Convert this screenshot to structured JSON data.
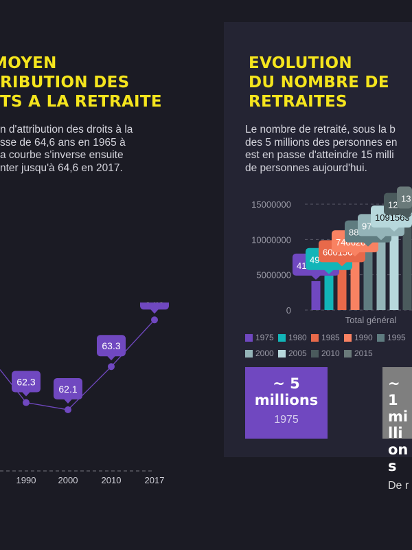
{
  "left": {
    "title_lines": [
      "MOYEN",
      "RIBUTION DES",
      "TS A LA RETRAITE"
    ],
    "paragraph_lines": [
      "n d'attribution des droits à la",
      "sse de 64,6 ans en 1965 à",
      "a courbe s'inverse ensuite",
      "nter jusqu'à 64,6 en 2017."
    ]
  },
  "right": {
    "title_lines": [
      "EVOLUTION",
      "DU NOMBRE DE",
      "RETRAITES"
    ],
    "paragraph_lines": [
      "Le nombre de retraité, sous la b",
      "des 5 millions des personnes en",
      "est en passe d'atteindre 15 milli",
      "de personnes aujourd'hui."
    ],
    "cards": [
      {
        "big1": "~ 5",
        "big2": "millions",
        "sub": "1975",
        "color": "#7048c0"
      },
      {
        "big1": "~ 1",
        "big2": "millions",
        "sub": "De r",
        "color": "#7f7f7f"
      }
    ]
  },
  "chart_data": [
    {
      "type": "line",
      "categories": [
        "1990",
        "2000",
        "2010",
        "2017"
      ],
      "values": [
        62.3,
        62.1,
        63.3,
        64.6
      ],
      "color": "#7048c0",
      "grid": false
    },
    {
      "type": "bar",
      "xlabel": "Total général",
      "yticks": [
        "0",
        "5000000",
        "10000000",
        "15000000"
      ],
      "ylim": [
        0,
        15000000
      ],
      "grid": true,
      "legend_position": "bottom",
      "series": [
        {
          "name": "1975",
          "value": 4100000,
          "label": "41",
          "color": "#7048c0"
        },
        {
          "name": "1980",
          "value": 4900000,
          "label": "49",
          "color": "#12b5b8"
        },
        {
          "name": "1985",
          "value": 6001569,
          "label": "6001569",
          "color": "#e8694a"
        },
        {
          "name": "1990",
          "value": 7406200,
          "label": "7406200",
          "color": "#f98262"
        },
        {
          "name": "1995",
          "value": 8800000,
          "label": "88",
          "color": "#5f7c80"
        },
        {
          "name": "2000",
          "value": 9700000,
          "label": "97",
          "color": "#94b4b8"
        },
        {
          "name": "2005",
          "value": 10915630,
          "label": "1091563",
          "color": "#b7d8dc"
        },
        {
          "name": "2010",
          "value": 12700000,
          "label": "127",
          "color": "#4a5a5c"
        },
        {
          "name": "2015",
          "value": 13600000,
          "label": "13",
          "color": "#6a7a7a"
        }
      ]
    }
  ]
}
